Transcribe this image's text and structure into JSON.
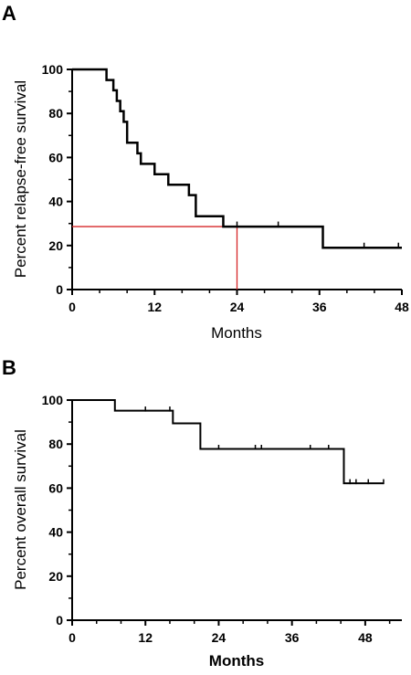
{
  "chart_data": [
    {
      "panel": "A",
      "type": "line",
      "step": true,
      "xlabel": "Months",
      "ylabel": "Percent relapse-free survival",
      "xlim": [
        0,
        48
      ],
      "ylim": [
        0,
        100
      ],
      "xticks": [
        0,
        12,
        24,
        36,
        48
      ],
      "yticks": [
        0,
        20,
        40,
        60,
        80,
        100
      ],
      "grid": false,
      "series": [
        {
          "x": [
            0,
            3,
            5,
            6,
            6.5,
            7,
            7.5,
            8,
            9.5,
            10,
            12,
            14,
            17,
            18,
            22,
            36.5,
            48
          ],
          "y": [
            100,
            100,
            95.2,
            90.5,
            85.7,
            81,
            76.2,
            66.7,
            61.9,
            57.1,
            52.4,
            47.6,
            42.9,
            33.3,
            28.6,
            19,
            19
          ],
          "censored_x": [
            24,
            30,
            42.5,
            47.5
          ]
        }
      ],
      "reference_line": {
        "x": 24,
        "y": 28.6,
        "color": "#d62728"
      }
    },
    {
      "panel": "B",
      "type": "line",
      "step": true,
      "xlabel": "Months",
      "ylabel": "Percent overall survival",
      "xlim": [
        0,
        54
      ],
      "ylim": [
        0,
        100
      ],
      "xticks": [
        0,
        12,
        24,
        36,
        48
      ],
      "yticks": [
        0,
        20,
        40,
        60,
        80,
        100
      ],
      "grid": false,
      "series": [
        {
          "x": [
            0,
            7,
            16.5,
            21,
            44.5,
            51
          ],
          "y": [
            100,
            95.2,
            89.4,
            77.8,
            62.2,
            62.2
          ],
          "censored_x": [
            12,
            16,
            24,
            30,
            31,
            39,
            42,
            45.5,
            46.5,
            48.5,
            51
          ]
        }
      ]
    }
  ]
}
